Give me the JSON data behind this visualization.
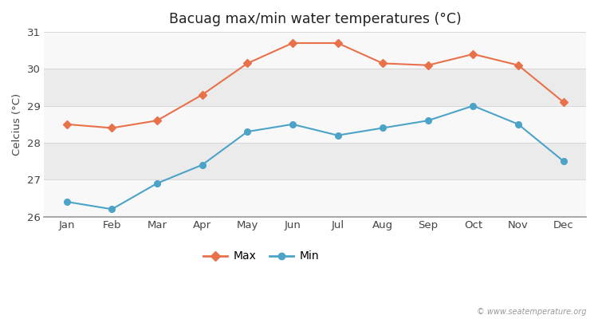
{
  "months": [
    "Jan",
    "Feb",
    "Mar",
    "Apr",
    "May",
    "Jun",
    "Jul",
    "Aug",
    "Sep",
    "Oct",
    "Nov",
    "Dec"
  ],
  "max_temps": [
    28.5,
    28.4,
    28.6,
    29.3,
    30.15,
    30.7,
    30.7,
    30.15,
    30.1,
    30.4,
    30.1,
    29.1
  ],
  "min_temps": [
    26.4,
    26.2,
    26.9,
    27.4,
    28.3,
    28.5,
    28.2,
    28.4,
    28.6,
    29.0,
    28.5,
    27.5
  ],
  "title": "Bacuag max/min water temperatures (°C)",
  "ylabel": "Celcius (°C)",
  "ylim": [
    26.0,
    31.0
  ],
  "max_color": "#e8714a",
  "min_color": "#4ca3c8",
  "bg_outer": "#ffffff",
  "stripe_light": "#ebebeb",
  "stripe_white": "#f8f8f8",
  "watermark": "© www.seatemperature.org",
  "legend_max": "Max",
  "legend_min": "Min",
  "yticks": [
    26,
    27,
    28,
    29,
    30,
    31
  ]
}
